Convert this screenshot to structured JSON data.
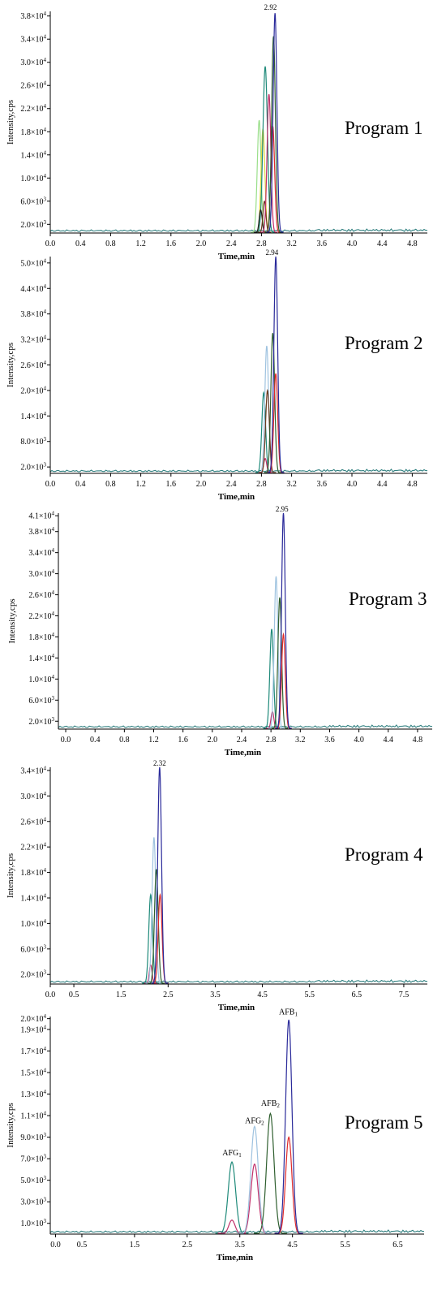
{
  "colors": {
    "axis": "#000000",
    "baseline": "#2f7f7f",
    "navy": "#2a2a9a",
    "red": "#e02b2b",
    "darkgreen": "#2f5f2f",
    "teal": "#1f8a7a",
    "lightblue": "#9fc3e0",
    "magenta": "#c0306a",
    "yellow": "#e0d840",
    "lightgreen": "#9adf8a",
    "brown": "#6b3a1f",
    "black": "#202020"
  },
  "chart_data": [
    {
      "type": "line",
      "program_label": "Program 1",
      "ylabel": "Intensity,cps",
      "xlabel": "Time,min",
      "xlim": [
        0,
        5
      ],
      "ylim": [
        500,
        38800
      ],
      "xticks": [
        0.0,
        0.4,
        0.8,
        1.2,
        1.6,
        2.0,
        2.4,
        2.8,
        3.2,
        3.6,
        4.0,
        4.4,
        4.8
      ],
      "xtick_labels": [
        "0.0",
        "0.4",
        "0.8",
        "1.2",
        "1.6",
        "2.0",
        "2.4",
        "2.8",
        "3.2",
        "3.6",
        "4.0",
        "4.4",
        "4.8"
      ],
      "yticks": [
        2000,
        6000,
        10000,
        14000,
        18000,
        22000,
        26000,
        30000,
        34000,
        38000
      ],
      "ytick_labels": [
        {
          "m": "2.0×10",
          "e": "3"
        },
        {
          "m": "6.0×10",
          "e": "3"
        },
        {
          "m": "1.0×10",
          "e": "4"
        },
        {
          "m": "1.4×10",
          "e": "4"
        },
        {
          "m": "1.8×10",
          "e": "4"
        },
        {
          "m": "2.2×10",
          "e": "4"
        },
        {
          "m": "2.6×10",
          "e": "4"
        },
        {
          "m": "3.0×10",
          "e": "4"
        },
        {
          "m": "3.4×10",
          "e": "4"
        },
        {
          "m": "3.8×10",
          "e": "4"
        }
      ],
      "peak_label": {
        "text": "2.92",
        "x": 2.92
      },
      "series": [
        {
          "color": "lightgreen",
          "center": 2.77,
          "height": 19500,
          "width": 0.025
        },
        {
          "color": "yellow",
          "center": 2.82,
          "height": 18000,
          "width": 0.025
        },
        {
          "color": "teal",
          "center": 2.85,
          "height": 28800,
          "width": 0.03
        },
        {
          "color": "black",
          "center": 2.79,
          "height": 4000,
          "width": 0.02
        },
        {
          "color": "brown",
          "center": 2.84,
          "height": 5500,
          "width": 0.02
        },
        {
          "color": "magenta",
          "center": 2.9,
          "height": 24000,
          "width": 0.025
        },
        {
          "color": "red",
          "center": 2.95,
          "height": 18500,
          "width": 0.025
        },
        {
          "color": "darkgreen",
          "center": 2.96,
          "height": 34000,
          "width": 0.025
        },
        {
          "color": "navy",
          "center": 2.98,
          "height": 38000,
          "width": 0.025
        }
      ]
    },
    {
      "type": "line",
      "program_label": "Program 2",
      "ylabel": "Intensity,cps",
      "xlabel": "Time,min",
      "xlim": [
        0,
        5
      ],
      "ylim": [
        500,
        51500
      ],
      "xticks": [
        0.0,
        0.4,
        0.8,
        1.2,
        1.6,
        2.0,
        2.4,
        2.8,
        3.2,
        3.6,
        4.0,
        4.4,
        4.8
      ],
      "xtick_labels": [
        "0.0",
        "0.4",
        "0.8",
        "1.2",
        "1.6",
        "2.0",
        "2.4",
        "2.8",
        "3.2",
        "3.6",
        "4.0",
        "4.4",
        "4.8"
      ],
      "yticks": [
        2000,
        8000,
        14000,
        20000,
        26000,
        32000,
        38000,
        44000,
        50000
      ],
      "ytick_labels": [
        {
          "m": "2.0×10",
          "e": "3"
        },
        {
          "m": "8.0×10",
          "e": "3"
        },
        {
          "m": "1.4×10",
          "e": "4"
        },
        {
          "m": "2.0×10",
          "e": "4"
        },
        {
          "m": "2.6×10",
          "e": "4"
        },
        {
          "m": "3.2×10",
          "e": "4"
        },
        {
          "m": "3.8×10",
          "e": "4"
        },
        {
          "m": "4.4×10",
          "e": "4"
        },
        {
          "m": "5.0×10",
          "e": "4"
        }
      ],
      "peak_label": {
        "text": "2.94",
        "x": 2.94
      },
      "series": [
        {
          "color": "teal",
          "center": 2.83,
          "height": 19000,
          "width": 0.025
        },
        {
          "color": "lightblue",
          "center": 2.87,
          "height": 30000,
          "width": 0.025
        },
        {
          "color": "magenta",
          "center": 2.85,
          "height": 3500,
          "width": 0.02
        },
        {
          "color": "brown",
          "center": 2.88,
          "height": 19500,
          "width": 0.025
        },
        {
          "color": "darkgreen",
          "center": 2.95,
          "height": 33000,
          "width": 0.025
        },
        {
          "color": "red",
          "center": 2.99,
          "height": 23500,
          "width": 0.025
        },
        {
          "color": "navy",
          "center": 2.99,
          "height": 51000,
          "width": 0.025
        }
      ]
    },
    {
      "type": "line",
      "program_label": "Program 3",
      "ylabel": "Intensity,cps",
      "xlabel": "Time,min",
      "xlim": [
        -0.1,
        5
      ],
      "ylim": [
        500,
        41500
      ],
      "xticks": [
        0.0,
        0.4,
        0.8,
        1.2,
        1.6,
        2.0,
        2.4,
        2.8,
        3.2,
        3.6,
        4.0,
        4.4,
        4.8
      ],
      "xtick_labels": [
        "0.0",
        "0.4",
        "0.8",
        "1.2",
        "1.6",
        "2.0",
        "2.4",
        "2.8",
        "3.2",
        "3.6",
        "4.0",
        "4.4",
        "4.8"
      ],
      "yticks": [
        2000,
        6000,
        10000,
        14000,
        18000,
        22000,
        26000,
        30000,
        34000,
        38000,
        41000
      ],
      "ytick_labels": [
        {
          "m": "2.0×10",
          "e": "3"
        },
        {
          "m": "6.0×10",
          "e": "3"
        },
        {
          "m": "1.0×10",
          "e": "4"
        },
        {
          "m": "1.4×10",
          "e": "4"
        },
        {
          "m": "1.8×10",
          "e": "4"
        },
        {
          "m": "2.2×10",
          "e": "4"
        },
        {
          "m": "2.6×10",
          "e": "4"
        },
        {
          "m": "3.0×10",
          "e": "4"
        },
        {
          "m": "3.4×10",
          "e": "4"
        },
        {
          "m": "3.8×10",
          "e": "4"
        },
        {
          "m": "4.1×10",
          "e": "4"
        }
      ],
      "peak_label": {
        "text": "2.95",
        "x": 2.95
      },
      "series": [
        {
          "color": "teal",
          "center": 2.81,
          "height": 19000,
          "width": 0.025
        },
        {
          "color": "magenta",
          "center": 2.82,
          "height": 3300,
          "width": 0.02
        },
        {
          "color": "lightblue",
          "center": 2.87,
          "height": 29000,
          "width": 0.025
        },
        {
          "color": "darkgreen",
          "center": 2.92,
          "height": 25000,
          "width": 0.025
        },
        {
          "color": "red",
          "center": 2.97,
          "height": 18000,
          "width": 0.025
        },
        {
          "color": "navy",
          "center": 2.97,
          "height": 41000,
          "width": 0.025
        }
      ]
    },
    {
      "type": "line",
      "program_label": "Program 4",
      "ylabel": "Intensity,cps",
      "xlabel": "Time,min",
      "xlim": [
        0,
        8
      ],
      "ylim": [
        500,
        34500
      ],
      "xticks": [
        0.0,
        0.5,
        1.5,
        2.5,
        3.5,
        4.5,
        5.5,
        6.5,
        7.5
      ],
      "xtick_labels": [
        "0.0",
        "0.5",
        "1.5",
        "2.5",
        "3.5",
        "4.5",
        "5.5",
        "6.5",
        "7.5"
      ],
      "yticks": [
        2000,
        6000,
        10000,
        14000,
        18000,
        22000,
        26000,
        30000,
        34000
      ],
      "ytick_labels": [
        {
          "m": "2.0×10",
          "e": "3"
        },
        {
          "m": "6.0×10",
          "e": "3"
        },
        {
          "m": "1.0×10",
          "e": "4"
        },
        {
          "m": "1.4×10",
          "e": "4"
        },
        {
          "m": "1.8×10",
          "e": "4"
        },
        {
          "m": "2.2×10",
          "e": "4"
        },
        {
          "m": "2.6×10",
          "e": "4"
        },
        {
          "m": "3.0×10",
          "e": "4"
        },
        {
          "m": "3.4×10",
          "e": "4"
        }
      ],
      "peak_label": {
        "text": "2.32",
        "x": 2.32
      },
      "series": [
        {
          "color": "teal",
          "center": 2.13,
          "height": 14000,
          "width": 0.04
        },
        {
          "color": "magenta",
          "center": 2.13,
          "height": 3000,
          "width": 0.03
        },
        {
          "color": "lightblue",
          "center": 2.2,
          "height": 23000,
          "width": 0.04
        },
        {
          "color": "darkgreen",
          "center": 2.25,
          "height": 18000,
          "width": 0.04
        },
        {
          "color": "red",
          "center": 2.33,
          "height": 14000,
          "width": 0.04
        },
        {
          "color": "navy",
          "center": 2.32,
          "height": 34000,
          "width": 0.04
        }
      ]
    },
    {
      "type": "line",
      "program_label": "Program 5",
      "ylabel": "Intensity,cps",
      "xlabel": "Time,min",
      "xlim": [
        -0.1,
        7
      ],
      "ylim": [
        0,
        20200
      ],
      "xticks": [
        0.0,
        0.5,
        1.5,
        2.5,
        3.5,
        4.5,
        5.5,
        6.5
      ],
      "xtick_labels": [
        "0.0",
        "0.5",
        "1.5",
        "2.5",
        "3.5",
        "4.5",
        "5.5",
        "6.5"
      ],
      "yticks": [
        1000,
        3000,
        5000,
        7000,
        9000,
        11000,
        13000,
        15000,
        17000,
        19000,
        20000
      ],
      "ytick_labels": [
        {
          "m": "1.0×10",
          "e": "3"
        },
        {
          "m": "3.0×10",
          "e": "3"
        },
        {
          "m": "5.0×10",
          "e": "3"
        },
        {
          "m": "7.0×10",
          "e": "3"
        },
        {
          "m": "9.0×10",
          "e": "3"
        },
        {
          "m": "1.1×10",
          "e": "4"
        },
        {
          "m": "1.3×10",
          "e": "4"
        },
        {
          "m": "1.5×10",
          "e": "4"
        },
        {
          "m": "1.7×10",
          "e": "4"
        },
        {
          "m": "1.9×10",
          "e": "4"
        },
        {
          "m": "2.0×10",
          "e": "4"
        }
      ],
      "annotations": [
        {
          "text": "AFG",
          "sub": "1",
          "x": 3.35,
          "y": 7300
        },
        {
          "text": "AFG",
          "sub": "2",
          "x": 3.78,
          "y": 10300
        },
        {
          "text": "AFB",
          "sub": "2",
          "x": 4.08,
          "y": 11900
        },
        {
          "text": "AFB",
          "sub": "1",
          "x": 4.42,
          "y": 20400
        }
      ],
      "series": [
        {
          "color": "teal",
          "center": 3.35,
          "height": 6700,
          "width": 0.07
        },
        {
          "color": "magenta",
          "center": 3.35,
          "height": 1300,
          "width": 0.06
        },
        {
          "color": "magenta",
          "center": 3.78,
          "height": 6500,
          "width": 0.07
        },
        {
          "color": "lightblue",
          "center": 3.78,
          "height": 10000,
          "width": 0.07
        },
        {
          "color": "darkgreen",
          "center": 4.08,
          "height": 11200,
          "width": 0.07
        },
        {
          "color": "red",
          "center": 4.43,
          "height": 9000,
          "width": 0.06
        },
        {
          "color": "navy",
          "center": 4.43,
          "height": 19900,
          "width": 0.06
        }
      ]
    }
  ]
}
